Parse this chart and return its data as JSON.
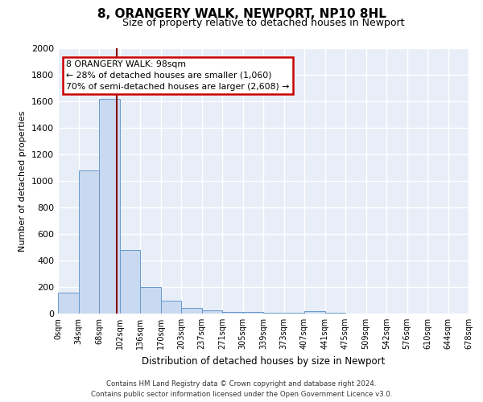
{
  "title": "8, ORANGERY WALK, NEWPORT, NP10 8HL",
  "subtitle": "Size of property relative to detached houses in Newport",
  "xlabel": "Distribution of detached houses by size in Newport",
  "ylabel": "Number of detached properties",
  "bar_color": "#c9d9f0",
  "bar_edge_color": "#6699cc",
  "background_color": "#e8eef8",
  "grid_color": "#ffffff",
  "bin_labels": [
    "0sqm",
    "34sqm",
    "68sqm",
    "102sqm",
    "136sqm",
    "170sqm",
    "203sqm",
    "237sqm",
    "271sqm",
    "305sqm",
    "339sqm",
    "373sqm",
    "407sqm",
    "441sqm",
    "475sqm",
    "509sqm",
    "542sqm",
    "576sqm",
    "610sqm",
    "644sqm",
    "678sqm"
  ],
  "bar_heights": [
    160,
    1080,
    1620,
    480,
    200,
    100,
    40,
    25,
    15,
    10,
    8,
    8,
    20,
    5,
    3,
    2,
    2,
    1,
    1,
    0
  ],
  "ylim": [
    0,
    2000
  ],
  "yticks": [
    0,
    200,
    400,
    600,
    800,
    1000,
    1200,
    1400,
    1600,
    1800,
    2000
  ],
  "property_line_x": 2.88,
  "annotation_text_line1": "8 ORANGERY WALK: 98sqm",
  "annotation_text_line2": "← 28% of detached houses are smaller (1,060)",
  "annotation_text_line3": "70% of semi-detached houses are larger (2,608) →",
  "annotation_box_color": "#ffffff",
  "annotation_box_edge": "#cc0000",
  "property_line_color": "#880000",
  "footnote1": "Contains HM Land Registry data © Crown copyright and database right 2024.",
  "footnote2": "Contains public sector information licensed under the Open Government Licence v3.0."
}
